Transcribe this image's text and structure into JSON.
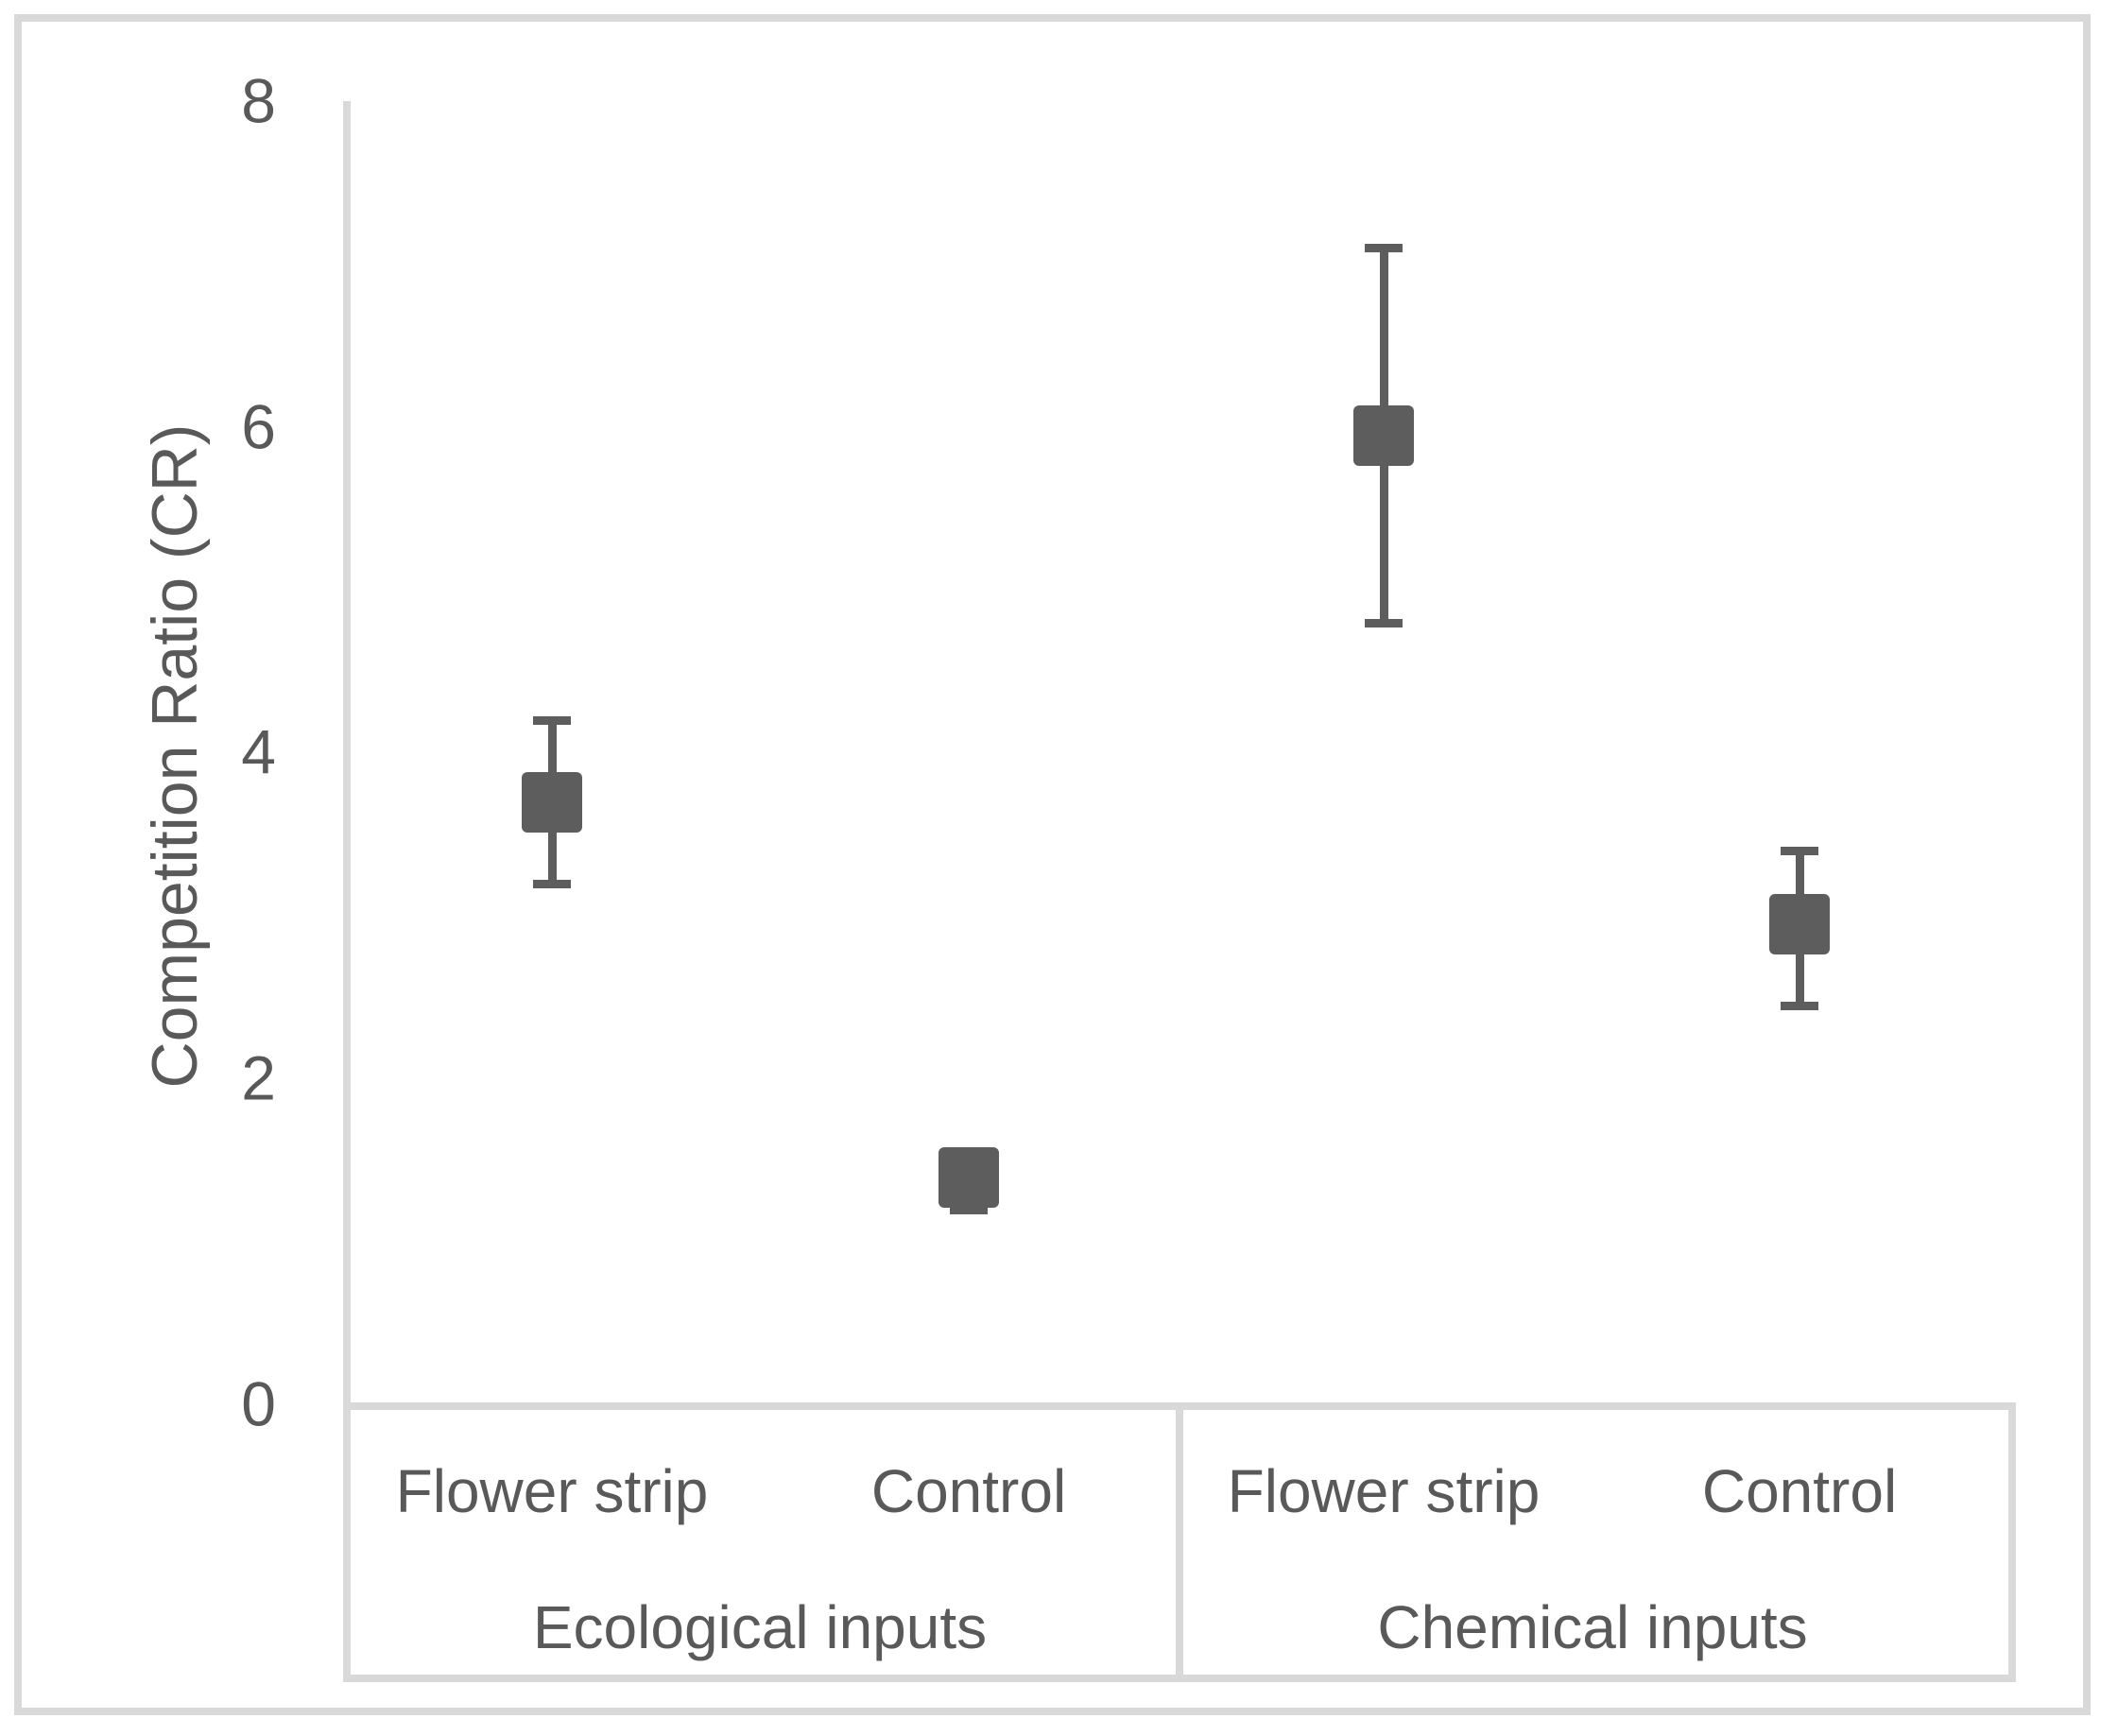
{
  "chart_data": {
    "type": "scatter",
    "title": "",
    "ylabel": "Competition Ratio (CR)",
    "xlabel": "",
    "ylim": [
      0,
      8
    ],
    "yticks": [
      "8",
      "6",
      "4",
      "2",
      "0"
    ],
    "grid": false,
    "legend": null,
    "x_axis": {
      "groups": [
        {
          "label": "Ecological inputs",
          "categories": [
            "Flower strip",
            "Control"
          ]
        },
        {
          "label": "Chemical inputs",
          "categories": [
            "Flower strip",
            "Control"
          ]
        }
      ]
    },
    "series": [
      {
        "name": "Competition Ratio (CR) mean with error bars",
        "marker": "square",
        "points": [
          {
            "group": "Ecological inputs",
            "category": "Flower strip",
            "mean": 3.7,
            "upper": 4.2,
            "lower": 3.2
          },
          {
            "group": "Ecological inputs",
            "category": "Control",
            "mean": 1.4,
            "upper": 1.5,
            "lower": 1.2
          },
          {
            "group": "Chemical inputs",
            "category": "Flower strip",
            "mean": 5.95,
            "upper": 7.1,
            "lower": 4.8
          },
          {
            "group": "Chemical inputs",
            "category": "Control",
            "mean": 2.95,
            "upper": 3.4,
            "lower": 2.45
          }
        ]
      }
    ],
    "colors": {
      "marker": "#5d5d5d",
      "error_bar": "#5d5d5d",
      "axis_line": "#d9d9d9",
      "text": "#595959",
      "border": "#d9d9d9",
      "background": "#ffffff"
    }
  }
}
